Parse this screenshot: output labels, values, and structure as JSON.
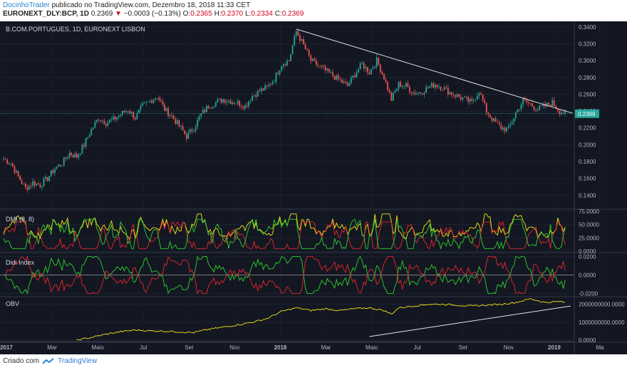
{
  "header": {
    "author": "DocinhoTrader",
    "published_text": "publicado no TradingView.com, Dezembro 18, 2018 11:33 CET",
    "symbol": "EURONEXT_DLY:BCP, 1D",
    "last": "0.2369",
    "change": "−0.0003 (−0.13%)",
    "o_label": "O:",
    "o_value": "0.2365",
    "h_label": "H:",
    "h_value": "0.2370",
    "l_label": "L:",
    "l_value": "0.2334",
    "c_label": "C:",
    "c_value": "0.2369"
  },
  "chart_data": {
    "type": "candlestick",
    "title": "B.COM.PORTUGUES, 1D, EURONEXT LISBON",
    "x_tick_labels": [
      "2017",
      "Mar",
      "Maio",
      "Jul",
      "Set",
      "Nov",
      "2018",
      "Mar",
      "Maio",
      "Jul",
      "Set",
      "Nov",
      "2019",
      "Ma"
    ],
    "price_axis": {
      "ticks": [
        "0.3400",
        "0.3200",
        "0.3000",
        "0.2800",
        "0.2600",
        "0.2400",
        "0.2200",
        "0.2000",
        "0.1800",
        "0.1600",
        "0.1400"
      ],
      "ylim": [
        0.125,
        0.345
      ],
      "last_price_label": "0.2369",
      "last_price": 0.2369
    },
    "price_close_path": [
      [
        0,
        0.183
      ],
      [
        4,
        0.178
      ],
      [
        8,
        0.162
      ],
      [
        12,
        0.148
      ],
      [
        16,
        0.155
      ],
      [
        20,
        0.152
      ],
      [
        24,
        0.16
      ],
      [
        28,
        0.172
      ],
      [
        32,
        0.178
      ],
      [
        36,
        0.19
      ],
      [
        40,
        0.186
      ],
      [
        44,
        0.2
      ],
      [
        48,
        0.218
      ],
      [
        52,
        0.232
      ],
      [
        56,
        0.226
      ],
      [
        60,
        0.23
      ],
      [
        64,
        0.236
      ],
      [
        68,
        0.242
      ],
      [
        72,
        0.232
      ],
      [
        76,
        0.246
      ],
      [
        80,
        0.252
      ],
      [
        84,
        0.258
      ],
      [
        88,
        0.242
      ],
      [
        92,
        0.234
      ],
      [
        96,
        0.222
      ],
      [
        100,
        0.21
      ],
      [
        104,
        0.22
      ],
      [
        108,
        0.236
      ],
      [
        112,
        0.246
      ],
      [
        116,
        0.25
      ],
      [
        120,
        0.254
      ],
      [
        124,
        0.252
      ],
      [
        128,
        0.25
      ],
      [
        132,
        0.246
      ],
      [
        136,
        0.258
      ],
      [
        140,
        0.264
      ],
      [
        144,
        0.268
      ],
      [
        148,
        0.278
      ],
      [
        152,
        0.296
      ],
      [
        156,
        0.3
      ],
      [
        160,
        0.335
      ],
      [
        164,
        0.318
      ],
      [
        168,
        0.3
      ],
      [
        172,
        0.294
      ],
      [
        176,
        0.288
      ],
      [
        180,
        0.282
      ],
      [
        184,
        0.276
      ],
      [
        188,
        0.27
      ],
      [
        192,
        0.284
      ],
      [
        196,
        0.296
      ],
      [
        200,
        0.286
      ],
      [
        204,
        0.3
      ],
      [
        208,
        0.28
      ],
      [
        212,
        0.254
      ],
      [
        216,
        0.272
      ],
      [
        220,
        0.27
      ],
      [
        224,
        0.262
      ],
      [
        228,
        0.262
      ],
      [
        232,
        0.268
      ],
      [
        236,
        0.272
      ],
      [
        240,
        0.268
      ],
      [
        244,
        0.262
      ],
      [
        248,
        0.258
      ],
      [
        252,
        0.254
      ],
      [
        256,
        0.25
      ],
      [
        260,
        0.264
      ],
      [
        264,
        0.24
      ],
      [
        268,
        0.228
      ],
      [
        272,
        0.22
      ],
      [
        276,
        0.218
      ],
      [
        280,
        0.238
      ],
      [
        284,
        0.252
      ],
      [
        288,
        0.248
      ],
      [
        292,
        0.242
      ],
      [
        296,
        0.246
      ],
      [
        300,
        0.25
      ],
      [
        304,
        0.24
      ],
      [
        307,
        0.2369
      ]
    ],
    "indicators": [
      {
        "name": "DMI (8, 8)",
        "ticks": [
          "75.0000",
          "50.0000",
          "25.0000",
          "0.0000"
        ],
        "ylim": [
          0,
          75
        ]
      },
      {
        "name": "Didi Index",
        "ticks": [
          "0.0200",
          "0.0000",
          "-0.0200"
        ],
        "ylim": [
          -0.022,
          0.022
        ]
      },
      {
        "name": "OBV",
        "ticks": [
          "2000000000.0000",
          "1000000000.0000",
          "0.0000"
        ],
        "ylim": [
          0,
          2300000000
        ],
        "path": [
          [
            40,
            0.0
          ],
          [
            48,
            150000000
          ],
          [
            56,
            330000000
          ],
          [
            64,
            470000000
          ],
          [
            72,
            560000000
          ],
          [
            80,
            520000000
          ],
          [
            88,
            500000000
          ],
          [
            96,
            460000000
          ],
          [
            104,
            420000000
          ],
          [
            112,
            600000000
          ],
          [
            120,
            720000000
          ],
          [
            128,
            850000000
          ],
          [
            136,
            1000000000
          ],
          [
            144,
            1200000000
          ],
          [
            152,
            1600000000
          ],
          [
            160,
            1800000000
          ],
          [
            168,
            1650000000
          ],
          [
            176,
            1750000000
          ],
          [
            184,
            1650000000
          ],
          [
            192,
            1750000000
          ],
          [
            200,
            1800000000
          ],
          [
            208,
            1650000000
          ],
          [
            212,
            1450000000
          ],
          [
            216,
            1800000000
          ],
          [
            224,
            1900000000
          ],
          [
            232,
            2000000000
          ],
          [
            240,
            2000000000
          ],
          [
            248,
            1950000000
          ],
          [
            256,
            1900000000
          ],
          [
            264,
            1950000000
          ],
          [
            272,
            2000000000
          ],
          [
            280,
            2100000000
          ],
          [
            288,
            2300000000
          ],
          [
            296,
            2100000000
          ],
          [
            304,
            2150000000
          ],
          [
            307,
            2100000000
          ]
        ]
      }
    ]
  },
  "footer": {
    "created_with": "Criado com",
    "brand": "TradingView"
  },
  "colors": {
    "background": "#131722",
    "up": "#26a69a",
    "down": "#ef5350",
    "trend_line": "#e0e3eb",
    "dmi_plus": "#2fd12f",
    "dmi_minus": "#e8262d",
    "adx": "#f5e618",
    "obv": "#f5e618"
  }
}
